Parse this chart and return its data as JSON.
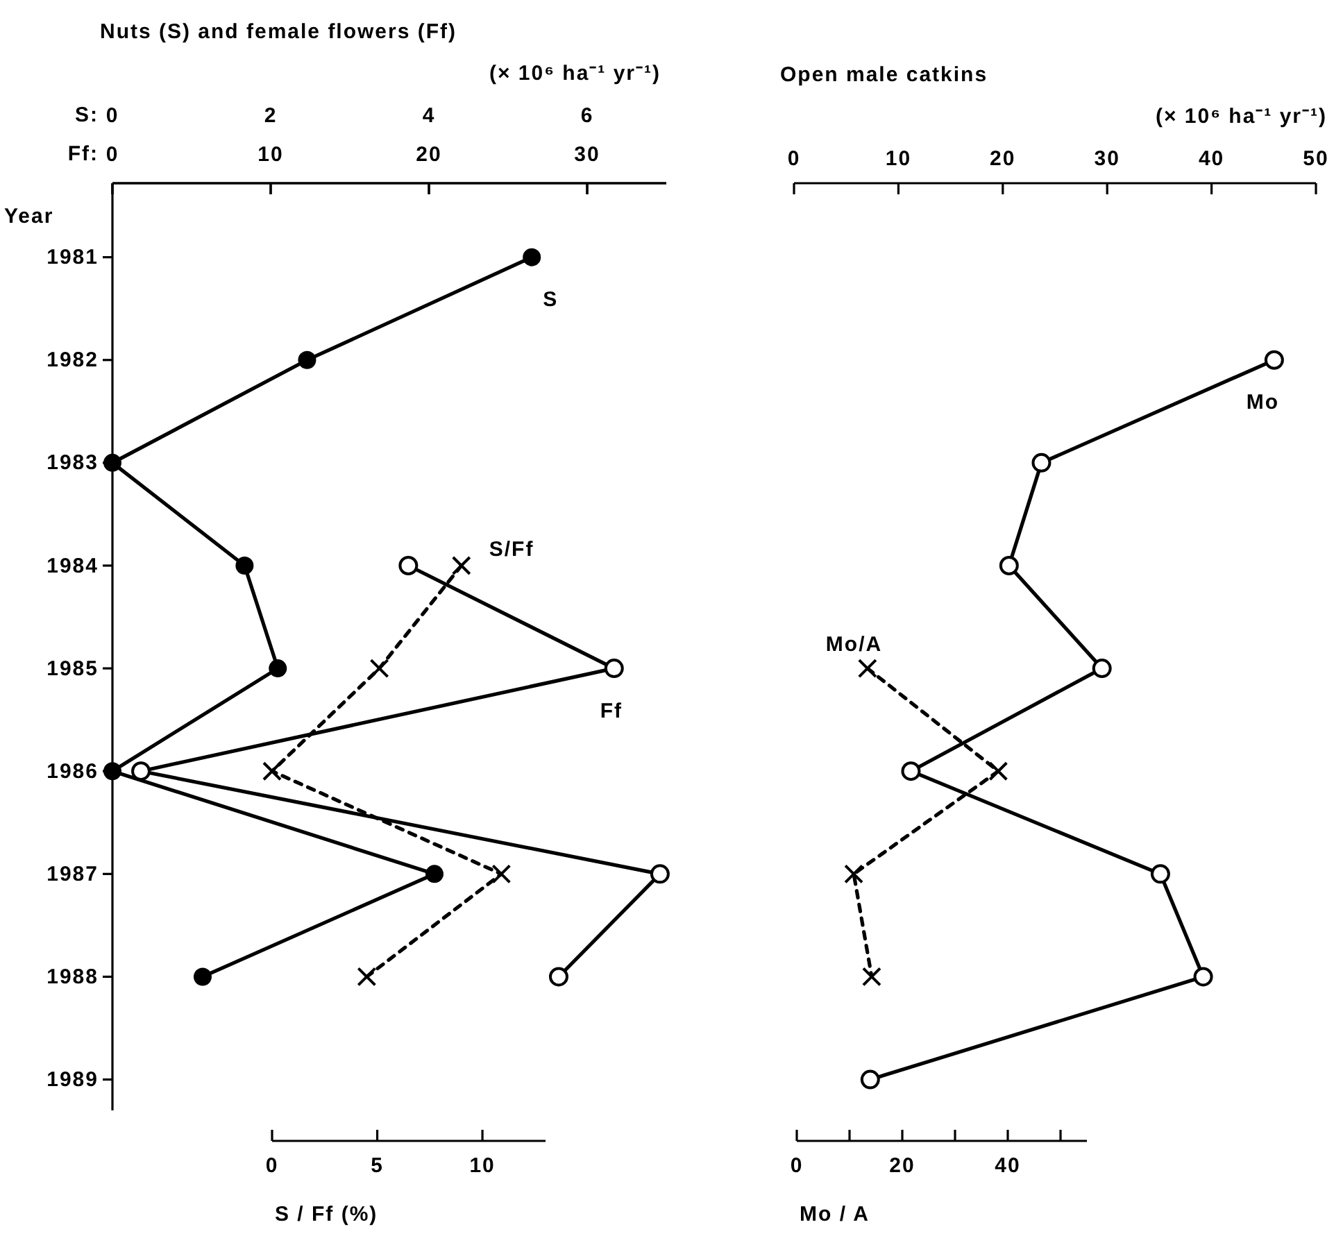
{
  "chart_data": [
    {
      "type": "line",
      "orientation": "horizontal",
      "title": "Nuts (S) and female flowers (Ff)",
      "subtitle": "(× 10⁶ ha⁻¹ yr⁻¹)",
      "ylabel": "Year",
      "x2label": "S:",
      "categories": [
        "1981",
        "1982",
        "1983",
        "1984",
        "1985",
        "1986",
        "1987",
        "1988",
        "1989"
      ],
      "x2lim": [
        0,
        7
      ],
      "x2ticks": [
        0,
        2,
        4,
        6
      ],
      "series": [
        {
          "name": "S",
          "color": "#000000",
          "axis": "x2",
          "marker": "circle",
          "line_style": "solid",
          "values": [
            5.3,
            2.46,
            0,
            1.67,
            2.09,
            0,
            4.07,
            1.14,
            null
          ]
        }
      ]
    },
    {
      "type": "line",
      "orientation": "horizontal",
      "x2label": "Ff:",
      "tick_labels": "x",
      "categories": [
        "1981",
        "1982",
        "1983",
        "1984",
        "1985",
        "1986",
        "1987",
        "1988",
        "1989"
      ],
      "x2lim": [
        0,
        35
      ],
      "x2ticks": [
        0,
        10,
        20,
        30
      ],
      "series": [
        {
          "name": "Ff",
          "color": "#000000",
          "axis": "x2",
          "marker": "circle-open",
          "line_style": "solid",
          "values": [
            null,
            null,
            null,
            18.7,
            31.7,
            1.8,
            34.6,
            28.2,
            null
          ]
        }
      ]
    },
    {
      "type": "line",
      "orientation": "horizontal",
      "xlabel": "S / Ff (%)",
      "tick_labels": "x",
      "categories": [
        "1981",
        "1982",
        "1983",
        "1984",
        "1985",
        "1986",
        "1987",
        "1988",
        "1989"
      ],
      "xlim": [
        0,
        13
      ],
      "xticks": [
        0,
        5,
        10
      ],
      "series": [
        {
          "name": "S/Ff",
          "color": "#000000",
          "marker": "cross",
          "line_style": "dashed",
          "values": [
            null,
            null,
            null,
            9.0,
            5.1,
            0,
            10.9,
            4.5,
            null
          ]
        }
      ]
    },
    {
      "type": "line",
      "orientation": "horizontal",
      "title": "Open male catkins",
      "subtitle": "(× 10⁶ ha⁻¹ yr⁻¹)",
      "tick_labels": "x",
      "categories": [
        "1981",
        "1982",
        "1983",
        "1984",
        "1985",
        "1986",
        "1987",
        "1988",
        "1989"
      ],
      "x2lim": [
        0,
        50
      ],
      "x2ticks": [
        0,
        10,
        20,
        30,
        40,
        50
      ],
      "series": [
        {
          "name": "Mo",
          "color": "#000000",
          "axis": "x2",
          "marker": "circle-open",
          "line_style": "solid",
          "values": [
            null,
            46,
            23.7,
            20.6,
            29.5,
            11.2,
            35.1,
            39.2,
            7.3
          ]
        }
      ]
    },
    {
      "type": "line",
      "orientation": "horizontal",
      "xlabel": "Mo / A",
      "tick_labels": "x",
      "categories": [
        "1981",
        "1982",
        "1983",
        "1984",
        "1985",
        "1986",
        "1987",
        "1988",
        "1989"
      ],
      "xlim": [
        0,
        55
      ],
      "xticks": [
        0,
        {
          "value": 10,
          "label": null
        },
        20,
        {
          "value": 30,
          "label": null
        },
        40,
        {
          "value": 50,
          "label": null
        }
      ],
      "series": [
        {
          "name": "Mo/A",
          "color": "#000000",
          "marker": "cross",
          "line_style": "dashed",
          "values": [
            null,
            null,
            null,
            null,
            13.4,
            38.2,
            10.8,
            14.2,
            null
          ]
        }
      ]
    }
  ]
}
